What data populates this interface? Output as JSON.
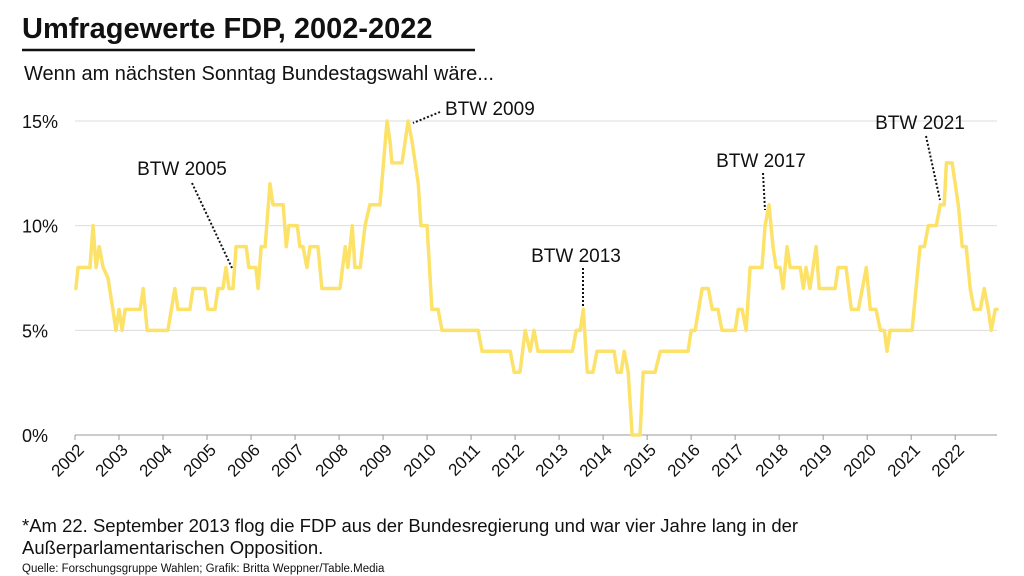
{
  "chart_data": {
    "type": "line",
    "title": "Umfragewerte FDP, 2002-2022",
    "subtitle": "Wenn am nächsten Sonntag Bundestagswahl wäre...",
    "annotations": [
      "BTW 2005",
      "BTW 2009",
      "BTW 2013",
      "BTW 2017",
      "BTW 2021"
    ],
    "footnote": "*Am 22. September 2013 flog die FDP aus der Bundesregierung und war vier Jahre lang in der Außerparlamentarischen Opposition.",
    "source": "Quelle: Forschungsgruppe Wahlen; Grafik: Britta Weppner/Table.Media",
    "series": [
      {
        "name": "FDP",
        "color": "#fde26a",
        "x": [
          2002.02,
          2002.07,
          2002.34,
          2002.41,
          2002.48,
          2002.55,
          2002.64,
          2002.75,
          2002.86,
          2002.93,
          2003.0,
          2003.07,
          2003.14,
          2003.48,
          2003.55,
          2003.64,
          2004.11,
          2004.27,
          2004.34,
          2004.61,
          2004.68,
          2004.95,
          2005.02,
          2005.18,
          2005.25,
          2005.36,
          2005.43,
          2005.5,
          2005.59,
          2005.66,
          2005.89,
          2005.95,
          2006.11,
          2006.16,
          2006.23,
          2006.32,
          2006.43,
          2006.5,
          2006.73,
          2006.8,
          2006.86,
          2007.05,
          2007.11,
          2007.18,
          2007.27,
          2007.34,
          2007.52,
          2007.61,
          2008.02,
          2008.14,
          2008.2,
          2008.3,
          2008.36,
          2008.48,
          2008.59,
          2008.7,
          2008.93,
          2009.09,
          2009.16,
          2009.2,
          2009.43,
          2009.57,
          2009.66,
          2009.8,
          2009.86,
          2010.0,
          2010.11,
          2010.25,
          2010.34,
          2011.16,
          2011.25,
          2011.89,
          2011.98,
          2012.11,
          2012.23,
          2012.34,
          2012.43,
          2012.52,
          2013.3,
          2013.39,
          2013.48,
          2013.55,
          2013.64,
          2013.77,
          2013.86,
          2014.25,
          2014.32,
          2014.41,
          2014.48,
          2014.57,
          2014.66,
          2014.84,
          2014.91,
          2015.18,
          2015.3,
          2015.93,
          2016.0,
          2016.09,
          2016.25,
          2016.39,
          2016.48,
          2016.61,
          2016.7,
          2017.0,
          2017.07,
          2017.16,
          2017.25,
          2017.34,
          2017.61,
          2017.68,
          2017.77,
          2017.86,
          2017.93,
          2018.02,
          2018.09,
          2018.18,
          2018.25,
          2018.48,
          2018.55,
          2018.61,
          2018.7,
          2018.77,
          2018.84,
          2018.91,
          2019.27,
          2019.34,
          2019.52,
          2019.64,
          2019.8,
          2019.98,
          2020.07,
          2020.2,
          2020.3,
          2020.39,
          2020.45,
          2020.52,
          2021.02,
          2021.2,
          2021.3,
          2021.39,
          2021.57,
          2021.66,
          2021.75,
          2021.8,
          2021.93,
          2022.07,
          2022.16,
          2022.25,
          2022.34,
          2022.43,
          2022.57,
          2022.66,
          2022.75,
          2022.82,
          2022.91,
          2022.95
        ],
        "values": [
          7,
          8,
          8,
          10,
          8,
          9,
          8,
          7.5,
          6,
          5,
          6,
          5,
          6,
          6,
          7,
          5,
          5,
          7,
          6,
          6,
          7,
          7,
          6,
          6,
          7,
          7,
          8,
          7,
          7,
          9,
          9,
          8,
          8,
          7,
          9,
          9,
          12,
          11,
          11,
          9,
          10,
          10,
          9,
          9,
          8,
          9,
          9,
          7,
          7,
          9,
          8,
          10,
          8,
          8,
          10,
          11,
          11,
          15,
          14,
          13,
          13,
          15,
          14,
          12,
          10,
          10,
          6,
          6,
          5,
          5,
          4,
          4,
          3,
          3,
          5,
          4,
          5,
          4,
          4,
          5,
          5,
          6,
          3,
          3,
          4,
          4,
          3,
          3,
          4,
          3,
          0,
          0,
          3,
          3,
          4,
          4,
          5,
          5,
          7,
          7,
          6,
          6,
          5,
          5,
          6,
          6,
          5,
          8,
          8,
          10,
          11,
          9,
          8,
          8,
          7,
          9,
          8,
          8,
          7,
          8,
          7,
          8,
          9,
          7,
          7,
          8,
          8,
          6,
          6,
          8,
          6,
          6,
          5,
          5,
          4,
          5,
          5,
          9,
          9,
          10,
          10,
          11,
          11,
          13,
          13,
          11,
          9,
          9,
          7,
          6,
          6,
          7,
          6,
          5,
          6,
          6
        ]
      }
    ],
    "xlim": [
      2002,
      2022.95
    ],
    "xticks": [
      2002,
      2003,
      2004,
      2005,
      2006,
      2007,
      2008,
      2009,
      2010,
      2011,
      2012,
      2013,
      2014,
      2015,
      2016,
      2017,
      2018,
      2019,
      2020,
      2021,
      2022
    ],
    "ylim": [
      0,
      15.6
    ],
    "yticks": [
      {
        "value": 0,
        "label": "0%"
      },
      {
        "value": 5,
        "label": "5%"
      },
      {
        "value": 10,
        "label": "10%"
      },
      {
        "value": 15,
        "label": "15%"
      }
    ],
    "grid": true
  }
}
